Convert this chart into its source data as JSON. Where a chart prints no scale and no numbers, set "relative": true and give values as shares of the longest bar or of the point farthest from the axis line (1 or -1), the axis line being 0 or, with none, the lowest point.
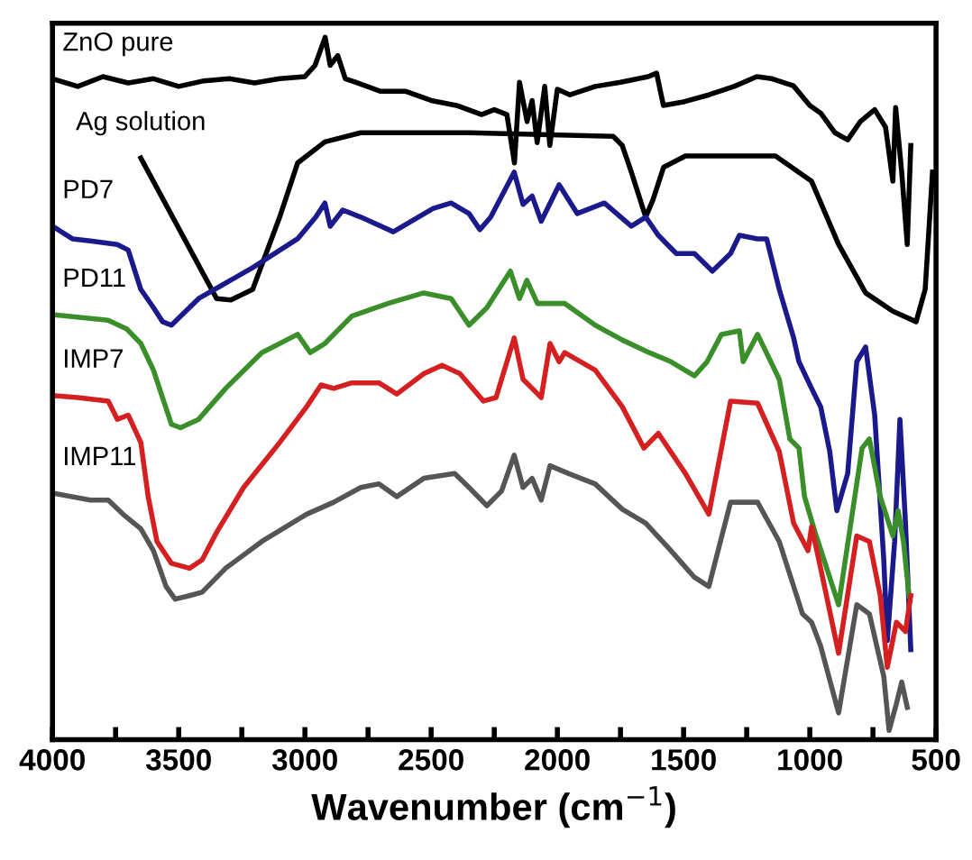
{
  "chart_data": {
    "type": "line",
    "xlabel": "Wavenumber (cm$^{−1}$)",
    "relative": true,
    "tick_labels": "x",
    "legend": false,
    "grid": false,
    "xlim": [
      4000,
      500
    ],
    "xticks": [
      4000,
      {
        "value": 3750,
        "label": null
      },
      3500,
      {
        "value": 3250,
        "label": null
      },
      3000,
      {
        "value": 2750,
        "label": null
      },
      2500,
      {
        "value": 2250,
        "label": null
      },
      2000,
      {
        "value": 1750,
        "label": null
      },
      1500,
      {
        "value": 1250,
        "label": null
      },
      1000,
      {
        "value": 750,
        "label": null
      },
      500
    ],
    "series": [
      {
        "name": "ZnO pure",
        "color": "#000000",
        "x": [
          4000,
          3900,
          3800,
          3700,
          3600,
          3500,
          3400,
          3300,
          3200,
          3100,
          3000,
          2960,
          2920,
          2900,
          2870,
          2840,
          2800,
          2700,
          2600,
          2500,
          2400,
          2300,
          2250,
          2200,
          2170,
          2150,
          2120,
          2100,
          2080,
          2050,
          2030,
          2000,
          1950,
          1850,
          1750,
          1640,
          1607,
          1580,
          1500,
          1400,
          1300,
          1210,
          1150,
          1065,
          1000,
          957,
          900,
          850,
          800,
          743,
          700,
          671,
          660,
          636,
          614,
          600
        ],
        "values": [
          0.941,
          0.93,
          0.944,
          0.935,
          0.941,
          0.93,
          0.938,
          0.941,
          0.935,
          0.941,
          0.944,
          0.96,
          1.0,
          0.96,
          0.974,
          0.941,
          0.936,
          0.923,
          0.923,
          0.91,
          0.903,
          0.89,
          0.897,
          0.89,
          0.821,
          0.936,
          0.88,
          0.91,
          0.85,
          0.93,
          0.846,
          0.926,
          0.918,
          0.93,
          0.936,
          0.944,
          0.949,
          0.903,
          0.908,
          0.918,
          0.93,
          0.944,
          0.941,
          0.931,
          0.903,
          0.892,
          0.864,
          0.854,
          0.88,
          0.897,
          0.872,
          0.795,
          0.9,
          0.808,
          0.705,
          0.846
        ]
      },
      {
        "name": "Ag solution",
        "color": "#000000",
        "x": [
          3650,
          3350,
          3293,
          3207,
          3100,
          3029,
          2921,
          2779,
          2350,
          1779,
          1743,
          1707,
          1650,
          1621,
          1579,
          1493,
          1136,
          993,
          886,
          779,
          671,
          579,
          543,
          514
        ],
        "values": [
          0.828,
          0.628,
          0.626,
          0.641,
          0.744,
          0.821,
          0.851,
          0.864,
          0.864,
          0.859,
          0.846,
          0.808,
          0.744,
          0.769,
          0.815,
          0.831,
          0.831,
          0.795,
          0.705,
          0.636,
          0.61,
          0.595,
          0.641,
          0.808
        ]
      },
      {
        "name": "PD7",
        "color": "#1a1a8c",
        "x": [
          4000,
          3921,
          3850,
          3743,
          3700,
          3650,
          3600,
          3564,
          3529,
          3421,
          3207,
          3029,
          2957,
          2921,
          2900,
          2850,
          2779,
          2650,
          2493,
          2421,
          2350,
          2307,
          2264,
          2171,
          2136,
          2100,
          2064,
          1993,
          1921,
          1814,
          1707,
          1650,
          1600,
          1529,
          1457,
          1386,
          1314,
          1279,
          1207,
          1171,
          1121,
          1079,
          1064,
          1043,
          993,
          957,
          921,
          893,
          850,
          814,
          779,
          743,
          707,
          693,
          664,
          643,
          621,
          600
        ],
        "values": [
          0.731,
          0.713,
          0.71,
          0.705,
          0.697,
          0.641,
          0.615,
          0.595,
          0.59,
          0.628,
          0.672,
          0.713,
          0.744,
          0.764,
          0.731,
          0.754,
          0.744,
          0.723,
          0.756,
          0.764,
          0.749,
          0.726,
          0.744,
          0.808,
          0.762,
          0.774,
          0.738,
          0.79,
          0.749,
          0.764,
          0.731,
          0.744,
          0.718,
          0.692,
          0.692,
          0.667,
          0.692,
          0.718,
          0.713,
          0.713,
          0.641,
          0.59,
          0.572,
          0.538,
          0.5,
          0.474,
          0.41,
          0.326,
          0.379,
          0.538,
          0.559,
          0.462,
          0.256,
          0.141,
          0.282,
          0.456,
          0.308,
          0.128
        ]
      },
      {
        "name": "PD11",
        "color": "#3a8f2a",
        "x": [
          4000,
          3780,
          3707,
          3650,
          3600,
          3564,
          3529,
          3493,
          3421,
          3314,
          3171,
          3029,
          2979,
          2921,
          2814,
          2671,
          2529,
          2421,
          2350,
          2279,
          2186,
          2150,
          2121,
          2079,
          1971,
          1850,
          1743,
          1636,
          1550,
          1457,
          1407,
          1350,
          1279,
          1264,
          1207,
          1121,
          1079,
          1043,
          1021,
          979,
          886,
          793,
          764,
          721,
          671,
          650,
          629,
          607
        ],
        "values": [
          0.605,
          0.597,
          0.585,
          0.564,
          0.526,
          0.487,
          0.449,
          0.444,
          0.456,
          0.5,
          0.551,
          0.577,
          0.551,
          0.564,
          0.603,
          0.621,
          0.636,
          0.628,
          0.59,
          0.615,
          0.667,
          0.628,
          0.654,
          0.621,
          0.621,
          0.59,
          0.569,
          0.551,
          0.538,
          0.518,
          0.538,
          0.577,
          0.582,
          0.538,
          0.577,
          0.513,
          0.428,
          0.415,
          0.346,
          0.295,
          0.192,
          0.415,
          0.428,
          0.346,
          0.29,
          0.326,
          0.282,
          0.205
        ]
      },
      {
        "name": "IMP7",
        "color": "#d42020",
        "x": [
          4000,
          3900,
          3779,
          3743,
          3700,
          3650,
          3621,
          3586,
          3529,
          3457,
          3407,
          3350,
          3243,
          3100,
          2993,
          2936,
          2886,
          2814,
          2707,
          2636,
          2529,
          2457,
          2386,
          2293,
          2243,
          2171,
          2136,
          2100,
          2064,
          2029,
          1993,
          1971,
          1850,
          1743,
          1657,
          1600,
          1493,
          1400,
          1314,
          1207,
          1121,
          1064,
          1007,
          993,
          957,
          886,
          814,
          764,
          721,
          693,
          657,
          621,
          600
        ],
        "values": [
          0.49,
          0.487,
          0.482,
          0.456,
          0.462,
          0.423,
          0.346,
          0.282,
          0.251,
          0.244,
          0.256,
          0.295,
          0.359,
          0.423,
          0.474,
          0.505,
          0.5,
          0.508,
          0.508,
          0.492,
          0.521,
          0.533,
          0.521,
          0.482,
          0.487,
          0.572,
          0.513,
          0.5,
          0.487,
          0.564,
          0.538,
          0.551,
          0.526,
          0.474,
          0.415,
          0.436,
          0.379,
          0.321,
          0.482,
          0.479,
          0.41,
          0.308,
          0.269,
          0.303,
          0.244,
          0.123,
          0.29,
          0.282,
          0.205,
          0.103,
          0.167,
          0.154,
          0.205
        ]
      },
      {
        "name": "IMP11",
        "color": "#555555",
        "x": [
          4000,
          3850,
          3779,
          3721,
          3650,
          3600,
          3550,
          3514,
          3457,
          3407,
          3314,
          3171,
          2993,
          2886,
          2779,
          2707,
          2636,
          2529,
          2407,
          2350,
          2279,
          2221,
          2171,
          2136,
          2100,
          2064,
          2029,
          1957,
          1850,
          1743,
          1650,
          1550,
          1457,
          1400,
          1314,
          1207,
          1121,
          1029,
          993,
          957,
          886,
          814,
          764,
          707,
          686,
          657,
          636,
          614
        ],
        "values": [
          0.351,
          0.341,
          0.341,
          0.321,
          0.3,
          0.269,
          0.218,
          0.2,
          0.205,
          0.21,
          0.244,
          0.282,
          0.321,
          0.338,
          0.359,
          0.364,
          0.346,
          0.372,
          0.379,
          0.359,
          0.333,
          0.354,
          0.405,
          0.359,
          0.372,
          0.341,
          0.39,
          0.379,
          0.364,
          0.328,
          0.308,
          0.269,
          0.231,
          0.218,
          0.338,
          0.338,
          0.282,
          0.179,
          0.167,
          0.133,
          0.038,
          0.192,
          0.179,
          0.09,
          0.013,
          0.051,
          0.082,
          0.046
        ]
      }
    ]
  }
}
